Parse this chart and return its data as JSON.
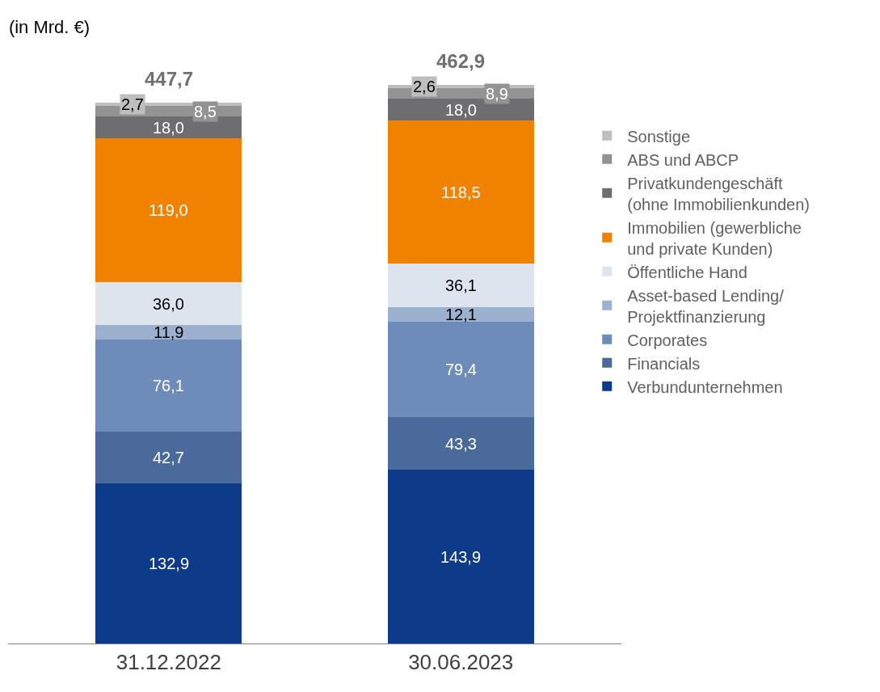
{
  "chart_data": {
    "type": "bar",
    "title": "(in Mrd. €)",
    "stacked": true,
    "legend": "right",
    "categories": [
      "31.12.2022",
      "30.06.2023"
    ],
    "series": [
      {
        "name": "Verbundunternehmen",
        "color": "#0e3a8a",
        "values": [
          132.9,
          143.9
        ],
        "value_labels": [
          "132,9",
          "143,9"
        ]
      },
      {
        "name": "Financials",
        "color": "#4a6a9c",
        "values": [
          42.7,
          43.3
        ],
        "value_labels": [
          "42,7",
          "43,3"
        ]
      },
      {
        "name": "Corporates",
        "color": "#6d8cba",
        "values": [
          76.1,
          79.4
        ],
        "value_labels": [
          "76,1",
          "79,4"
        ]
      },
      {
        "name": "Asset-based Lending/ Projektfinanzierung",
        "color": "#9cb0cf",
        "values": [
          11.9,
          12.1
        ],
        "value_labels": [
          "11,9",
          "12,1"
        ]
      },
      {
        "name": "Öffentliche Hand",
        "color": "#dde4ee",
        "values": [
          36.0,
          36.1
        ],
        "value_labels": [
          "36,0",
          "36,1"
        ]
      },
      {
        "name": "Immobilien (gewerbliche und private Kunden)",
        "color": "#f08200",
        "values": [
          119.0,
          118.5
        ],
        "value_labels": [
          "119,0",
          "118,5"
        ]
      },
      {
        "name": "Privatkundengeschäft (ohne Immobilienkunden)",
        "color": "#6e6e70",
        "values": [
          18.0,
          18.0
        ],
        "value_labels": [
          "18,0",
          "18,0"
        ]
      },
      {
        "name": "ABS und ABCP",
        "color": "#939393",
        "values": [
          8.5,
          8.9
        ],
        "value_labels": [
          "8,5",
          "8,9"
        ]
      },
      {
        "name": "Sonstige",
        "color": "#bebebe",
        "values": [
          2.7,
          2.6
        ],
        "value_labels": [
          "2,7",
          "2,6"
        ]
      }
    ],
    "totals": [
      "447,7",
      "462,9"
    ]
  }
}
